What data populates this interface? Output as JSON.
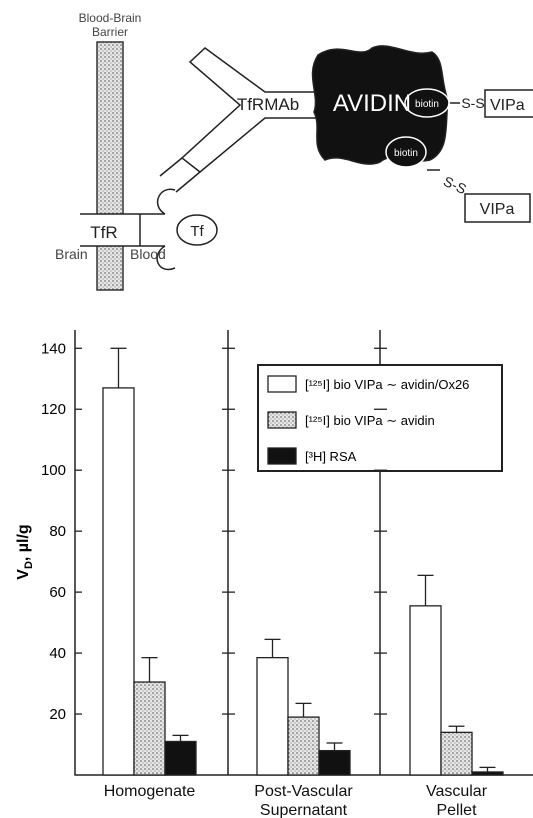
{
  "diagram": {
    "barrier_label": [
      "Blood-Brain",
      "Barrier"
    ],
    "receptor": "TfR",
    "transferrin": "Tf",
    "brain": "Brain",
    "blood": "Blood",
    "antibody": "TfRMAb",
    "avidin": "AVIDIN",
    "biotin_1": "biotin",
    "biotin_2": "biotin",
    "linker_1": "S-S",
    "linker_2": "S-S",
    "peptide_1": "VIPa",
    "peptide_2": "VIPa"
  },
  "chart_data": {
    "type": "bar",
    "y_label": {
      "main": "V",
      "sub": "D",
      "rest": ", µl/g"
    },
    "categories": [
      "Homogenate",
      "Post-Vascular\nSupernatant",
      "Vascular\nPellet"
    ],
    "series": [
      {
        "name": "[¹²⁵I] bio VIPa ∼ avidin/Ox26",
        "color": "#ffffff",
        "values": [
          127,
          38.5,
          55.5
        ],
        "errors": [
          13,
          6,
          10
        ]
      },
      {
        "name": "[¹²⁵I] bio VIPa ∼ avidin",
        "color": "#c8c8c8",
        "values": [
          30.5,
          19,
          14
        ],
        "errors": [
          8,
          4.5,
          2
        ]
      },
      {
        "name": "[³H] RSA",
        "color": "#111111",
        "values": [
          11,
          8,
          1
        ],
        "errors": [
          2,
          2.5,
          1.5
        ]
      }
    ],
    "ylim": [
      0,
      146
    ],
    "yticks": [
      20,
      40,
      60,
      80,
      100,
      120,
      140
    ],
    "grid": false
  }
}
